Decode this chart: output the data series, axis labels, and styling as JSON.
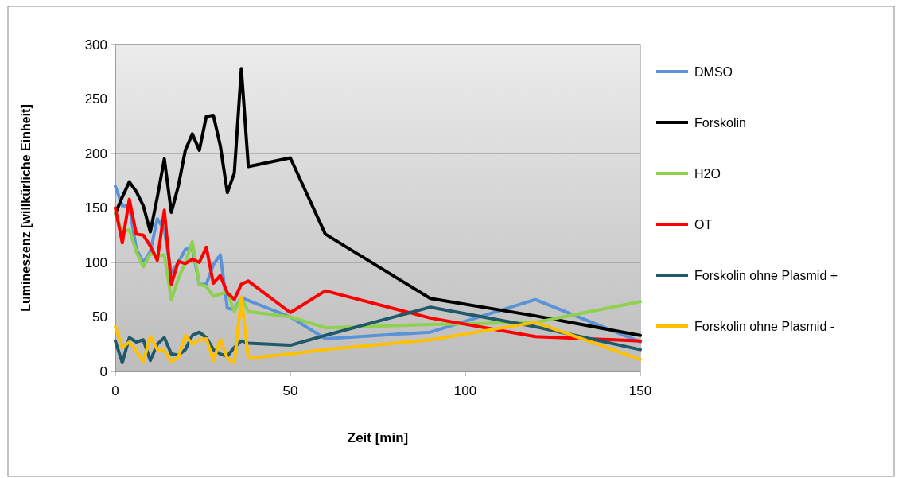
{
  "chart_data": {
    "type": "line",
    "xlabel": "Zeit [min]",
    "ylabel": "Lumineszenz [willkürliche Einheit]",
    "x": [
      0,
      2,
      4,
      6,
      8,
      10,
      12,
      14,
      16,
      18,
      20,
      22,
      24,
      26,
      28,
      30,
      32,
      34,
      36,
      38,
      50,
      60,
      90,
      120,
      150
    ],
    "xlim": [
      0,
      150
    ],
    "xticks": [
      0,
      50,
      100,
      150
    ],
    "ylim": [
      0,
      300
    ],
    "yticks": [
      0,
      50,
      100,
      150,
      200,
      250,
      300
    ],
    "grid": "y",
    "legend": "right",
    "marker": "none",
    "line_style": "solid",
    "series": [
      {
        "name": "DMSO",
        "color": "#5b93d8",
        "values": [
          170,
          152,
          152,
          112,
          100,
          110,
          140,
          130,
          90,
          100,
          112,
          113,
          80,
          80,
          98,
          107,
          58,
          57,
          68,
          65,
          50,
          30,
          36,
          66,
          27
        ]
      },
      {
        "name": "Forskolin",
        "color": "#000000",
        "values": [
          145,
          160,
          174,
          165,
          152,
          128,
          160,
          195,
          146,
          170,
          203,
          218,
          203,
          234,
          235,
          207,
          164,
          182,
          278,
          188,
          196,
          126,
          67,
          51,
          33
        ]
      },
      {
        "name": "H2O",
        "color": "#8fd14f",
        "values": [
          145,
          128,
          130,
          110,
          96,
          108,
          106,
          107,
          66,
          85,
          100,
          119,
          80,
          78,
          69,
          71,
          73,
          55,
          68,
          55,
          50,
          40,
          43,
          45,
          64
        ]
      },
      {
        "name": "OT",
        "color": "#ff0000",
        "values": [
          150,
          118,
          158,
          126,
          125,
          115,
          102,
          148,
          80,
          101,
          99,
          103,
          100,
          114,
          81,
          88,
          72,
          66,
          80,
          83,
          54,
          74,
          49,
          32,
          28
        ]
      },
      {
        "name": "Forskolin ohne Plasmid +",
        "color": "#215968",
        "values": [
          28,
          8,
          31,
          27,
          29,
          10,
          25,
          31,
          16,
          15,
          20,
          33,
          36,
          31,
          20,
          16,
          14,
          22,
          28,
          26,
          24,
          33,
          59,
          41,
          20
        ]
      },
      {
        "name": "Forskolin ohne Plasmid -",
        "color": "#ffc000",
        "values": [
          41,
          22,
          27,
          19,
          9,
          32,
          20,
          19,
          9,
          13,
          33,
          25,
          29,
          30,
          10,
          29,
          12,
          8,
          68,
          12,
          16,
          20,
          29,
          45,
          11
        ]
      }
    ]
  }
}
